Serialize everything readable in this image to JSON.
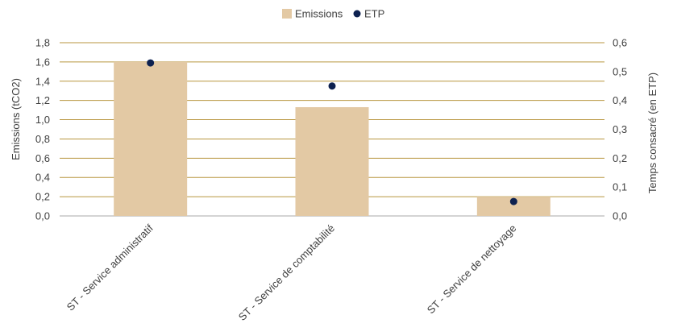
{
  "chart_data": {
    "type": "bar",
    "categories": [
      "ST - Service administratif",
      "ST - Service de comptabilité",
      "ST - Service de nettoyage"
    ],
    "series": [
      {
        "name": "Emissions",
        "type": "bar",
        "axis": "left",
        "color": "#e3c9a4",
        "values": [
          1.6,
          1.13,
          0.2
        ]
      },
      {
        "name": "ETP",
        "type": "scatter",
        "axis": "right",
        "color": "#0d2150",
        "values": [
          0.53,
          0.45,
          0.05
        ]
      }
    ],
    "title": "",
    "ylabel": "Emissions (tCO2)",
    "y2label": "Temps consacré (en ETP)",
    "ylim": [
      0,
      1.8
    ],
    "y2lim": [
      0,
      0.6
    ],
    "yticks": [
      "0,0",
      "0,2",
      "0,4",
      "0,6",
      "0,8",
      "1,0",
      "1,2",
      "1,4",
      "1,6",
      "1,8"
    ],
    "y2ticks": [
      "0,0",
      "0,1",
      "0,2",
      "0,3",
      "0,4",
      "0,5",
      "0,6"
    ],
    "grid": true,
    "grid_color": "#b8963f",
    "legend_position": "top-center"
  }
}
